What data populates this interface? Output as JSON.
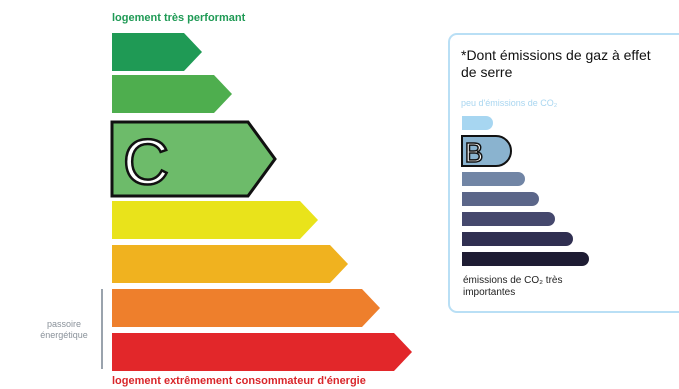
{
  "energy_scale": {
    "top_label": "logement très performant",
    "bottom_label": "logement extrêmement consommateur d'énergie",
    "current_class": "C",
    "passoire_label": "passoire énergétique",
    "bars": [
      {
        "color": "#1f9a55"
      },
      {
        "color": "#4eae4e"
      },
      {
        "color": "#6dbb6a",
        "letter": "C"
      },
      {
        "color": "#e9e31b"
      },
      {
        "color": "#f0b21f"
      },
      {
        "color": "#ee7f2c"
      },
      {
        "color": "#e2272a"
      }
    ]
  },
  "ges_scale": {
    "title": "*Dont émissions de gaz à effet de serre",
    "top_label": "peu d'émissions de CO₂",
    "bottom_label": "émissions de CO₂ très importantes",
    "current_class": "B",
    "bars": [
      {
        "color": "#a7d6f1"
      },
      {
        "color": "#8ab3cf",
        "letter": "B"
      },
      {
        "color": "#7185a5"
      },
      {
        "color": "#5b6689"
      },
      {
        "color": "#45486d"
      },
      {
        "color": "#302f51"
      },
      {
        "color": "#1e1c33"
      }
    ]
  }
}
